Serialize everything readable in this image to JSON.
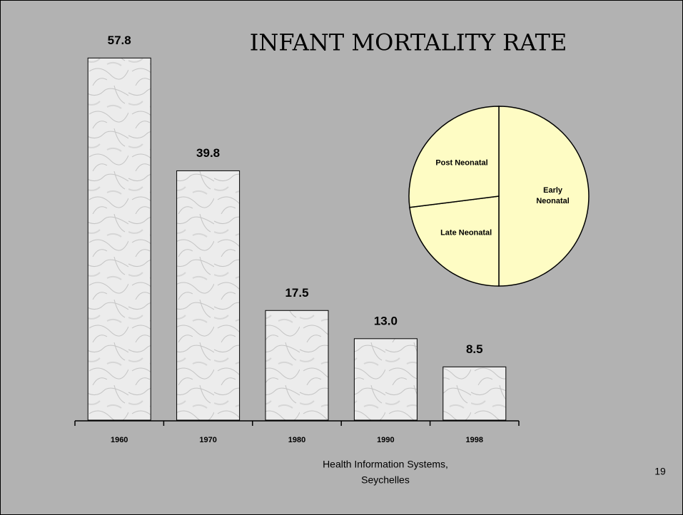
{
  "chart_data": [
    {
      "type": "bar",
      "title": "INFANT MORTALITY RATE",
      "categories": [
        "1960",
        "1970",
        "1980",
        "1990",
        "1998"
      ],
      "values": [
        57.8,
        39.8,
        17.5,
        13.0,
        8.5
      ],
      "value_labels": [
        "57.8",
        "39.8",
        "17.5",
        "13.0",
        "8.5"
      ],
      "ylim": [
        0,
        60
      ],
      "color": "#ececec"
    },
    {
      "type": "pie",
      "categories": [
        "Early Neonatal",
        "Late Neonatal",
        "Post Neonatal"
      ],
      "values": [
        50,
        23,
        27
      ],
      "color": "#fefcc4"
    }
  ],
  "footer": [
    "Health Information Systems,",
    "Seychelles"
  ],
  "page_number": "19"
}
